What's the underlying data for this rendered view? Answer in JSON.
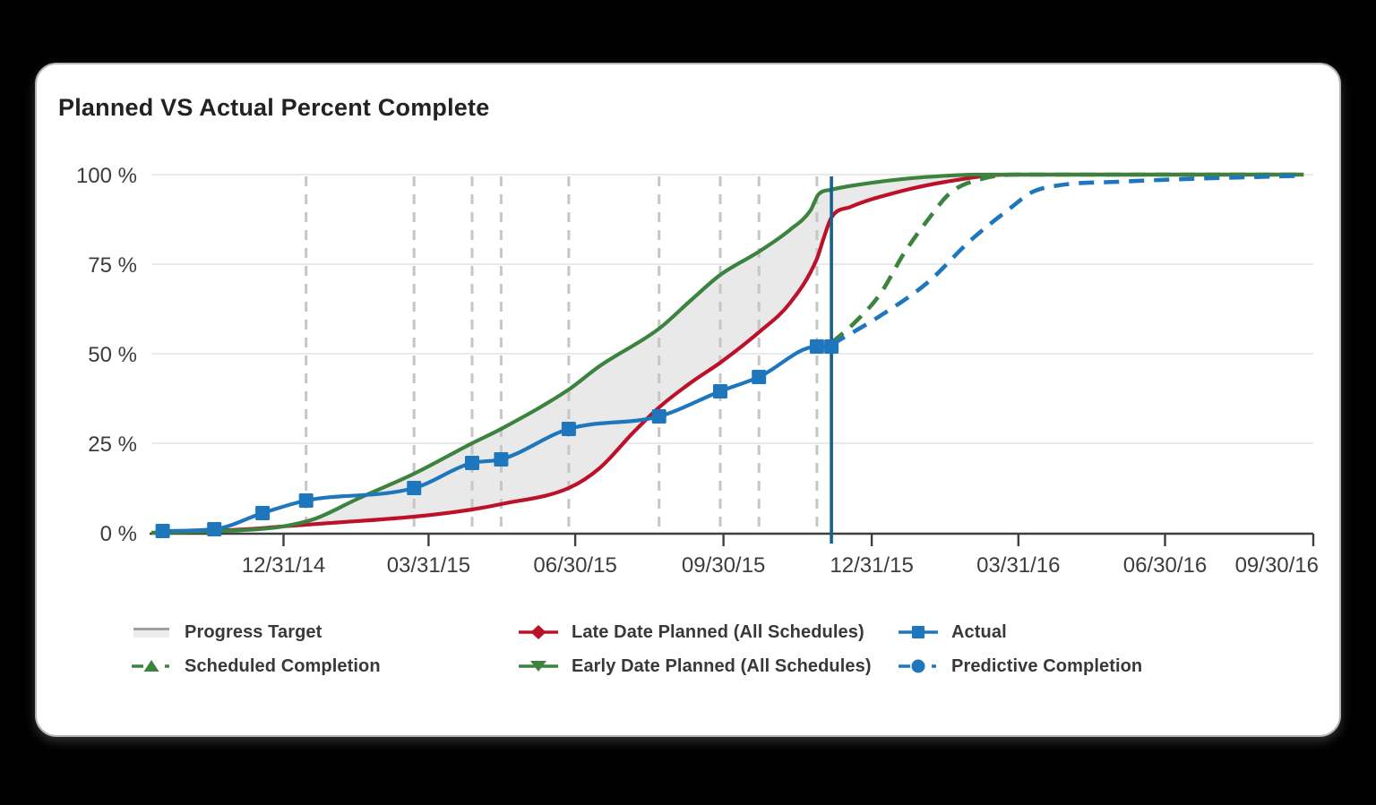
{
  "page": {
    "background": "#000000",
    "card_background": "#ffffff"
  },
  "header": {
    "title": "Planned VS Actual Percent Complete"
  },
  "chart_data": {
    "type": "line",
    "title": "Planned VS Actual Percent Complete",
    "x_axis": {
      "range": [
        "2014-10-10",
        "2016-09-30"
      ],
      "ticks": [
        {
          "label": "12/31/14",
          "date": "2014-12-31"
        },
        {
          "label": "03/31/15",
          "date": "2015-03-31"
        },
        {
          "label": "06/30/15",
          "date": "2015-06-30"
        },
        {
          "label": "09/30/15",
          "date": "2015-09-30"
        },
        {
          "label": "12/31/15",
          "date": "2015-12-31"
        },
        {
          "label": "03/31/16",
          "date": "2016-03-31"
        },
        {
          "label": "06/30/16",
          "date": "2016-06-30"
        },
        {
          "label": "09/30/16",
          "date": "2016-09-30"
        }
      ]
    },
    "y_axis": {
      "range": [
        0,
        100
      ],
      "ticks": [
        {
          "label": "100 %",
          "value": 100
        },
        {
          "label": "75 %",
          "value": 75
        },
        {
          "label": "50 %",
          "value": 50
        },
        {
          "label": "25 %",
          "value": 25
        },
        {
          "label": "0 %",
          "value": 0
        }
      ]
    },
    "grid": {
      "horizontal": true,
      "update_lines": [
        "2015-01-14",
        "2015-03-22",
        "2015-04-27",
        "2015-05-15",
        "2015-06-26",
        "2015-08-21",
        "2015-09-28",
        "2015-10-22",
        "2015-11-27"
      ],
      "update_line_color": "#c6c6c6",
      "horizontal_color": "#e4e4e4"
    },
    "data_date_line": {
      "date": "2015-12-06",
      "color": "#16618f"
    },
    "band": {
      "name": "Progress Target",
      "upper": "early_planned",
      "lower": "late_planned",
      "fill": "#e9e9e9"
    },
    "series": [
      {
        "id": "late_planned",
        "name": "Late Date Planned (All Schedules)",
        "color": "#bc1229",
        "style": "solid",
        "marker": "none",
        "points": [
          [
            "2014-10-10",
            0
          ],
          [
            "2014-11-15",
            0.5
          ],
          [
            "2014-12-15",
            1.2
          ],
          [
            "2014-12-31",
            1.8
          ],
          [
            "2015-01-31",
            2.8
          ],
          [
            "2015-03-22",
            4.5
          ],
          [
            "2015-04-27",
            6.5
          ],
          [
            "2015-05-15",
            8
          ],
          [
            "2015-06-26",
            12.5
          ],
          [
            "2015-07-15",
            18
          ],
          [
            "2015-08-05",
            28
          ],
          [
            "2015-08-21",
            35
          ],
          [
            "2015-09-10",
            42
          ],
          [
            "2015-09-28",
            47.5
          ],
          [
            "2015-10-22",
            56
          ],
          [
            "2015-11-10",
            64
          ],
          [
            "2015-11-27",
            76.5
          ],
          [
            "2015-12-01",
            82
          ],
          [
            "2015-12-06",
            88
          ],
          [
            "2015-12-18",
            91
          ],
          [
            "2016-01-15",
            95
          ],
          [
            "2016-02-15",
            98
          ],
          [
            "2016-03-25",
            100
          ],
          [
            "2016-09-24",
            100
          ]
        ]
      },
      {
        "id": "early_planned",
        "name": "Early Date Planned (All Schedules)",
        "color": "#3b833f",
        "style": "solid",
        "marker": "none",
        "points": [
          [
            "2014-10-10",
            0
          ],
          [
            "2014-11-15",
            0.4
          ],
          [
            "2014-12-15",
            1
          ],
          [
            "2014-12-31",
            1.8
          ],
          [
            "2015-01-20",
            4
          ],
          [
            "2015-02-15",
            9.5
          ],
          [
            "2015-03-22",
            16.5
          ],
          [
            "2015-04-27",
            25
          ],
          [
            "2015-05-15",
            29
          ],
          [
            "2015-06-26",
            40
          ],
          [
            "2015-07-15",
            46.5
          ],
          [
            "2015-08-21",
            57
          ],
          [
            "2015-09-10",
            65
          ],
          [
            "2015-09-28",
            72
          ],
          [
            "2015-10-22",
            78.5
          ],
          [
            "2015-11-10",
            84.5
          ],
          [
            "2015-11-23",
            90
          ],
          [
            "2015-11-28",
            94.5
          ],
          [
            "2015-12-06",
            95.8
          ],
          [
            "2015-12-20",
            97
          ],
          [
            "2016-01-20",
            98.8
          ],
          [
            "2016-02-20",
            99.8
          ],
          [
            "2016-03-05",
            100
          ],
          [
            "2016-09-24",
            100
          ]
        ]
      },
      {
        "id": "scheduled_completion",
        "name": "Scheduled Completion",
        "color": "#3b833f",
        "style": "dashed",
        "marker": "none",
        "points": [
          [
            "2015-12-06",
            53
          ],
          [
            "2015-12-20",
            58.5
          ],
          [
            "2016-01-05",
            66.5
          ],
          [
            "2016-01-20",
            78
          ],
          [
            "2016-02-04",
            87.5
          ],
          [
            "2016-02-18",
            95
          ],
          [
            "2016-03-10",
            99
          ],
          [
            "2016-03-31",
            100
          ],
          [
            "2016-09-24",
            100
          ]
        ]
      },
      {
        "id": "predictive_completion",
        "name": "Predictive Completion",
        "color": "#1e76bc",
        "style": "dashed",
        "marker": "none",
        "points": [
          [
            "2015-12-06",
            52.5
          ],
          [
            "2016-01-05",
            60.5
          ],
          [
            "2016-02-04",
            70
          ],
          [
            "2016-03-01",
            81.5
          ],
          [
            "2016-03-27",
            91
          ],
          [
            "2016-04-08",
            95
          ],
          [
            "2016-04-25",
            97
          ],
          [
            "2016-06-01",
            98
          ],
          [
            "2016-07-15",
            98.8
          ],
          [
            "2016-09-24",
            99.7
          ]
        ]
      },
      {
        "id": "actual",
        "name": "Actual",
        "color": "#1e76bc",
        "style": "solid",
        "marker": "square",
        "points": [
          [
            "2014-10-17",
            0.5
          ],
          [
            "2014-11-18",
            1
          ],
          [
            "2014-12-18",
            5.5
          ],
          [
            "2015-01-14",
            9
          ],
          [
            "2015-03-22",
            12.5
          ],
          [
            "2015-04-27",
            19.5
          ],
          [
            "2015-05-15",
            20.5
          ],
          [
            "2015-06-26",
            29
          ],
          [
            "2015-08-21",
            32.5
          ],
          [
            "2015-09-28",
            39.5
          ],
          [
            "2015-10-22",
            43.5
          ],
          [
            "2015-11-27",
            52
          ],
          [
            "2015-12-06",
            52
          ]
        ]
      }
    ],
    "legend": {
      "position": "bottom",
      "items": [
        {
          "label": "Progress Target",
          "swatch": "band",
          "color": "#9f9f9f",
          "fill": "#ececec"
        },
        {
          "label": "Late Date Planned (All Schedules)",
          "swatch": "line-diamond",
          "color": "#bc1229"
        },
        {
          "label": "Actual",
          "swatch": "line-square",
          "color": "#1e76bc"
        },
        {
          "label": "Scheduled Completion",
          "swatch": "dash-triangle-up",
          "color": "#3b833f"
        },
        {
          "label": "Early Date Planned (All Schedules)",
          "swatch": "line-triangle-down",
          "color": "#3b833f"
        },
        {
          "label": "Predictive Completion",
          "swatch": "dashdot-circle",
          "color": "#1e76bc"
        }
      ]
    }
  }
}
